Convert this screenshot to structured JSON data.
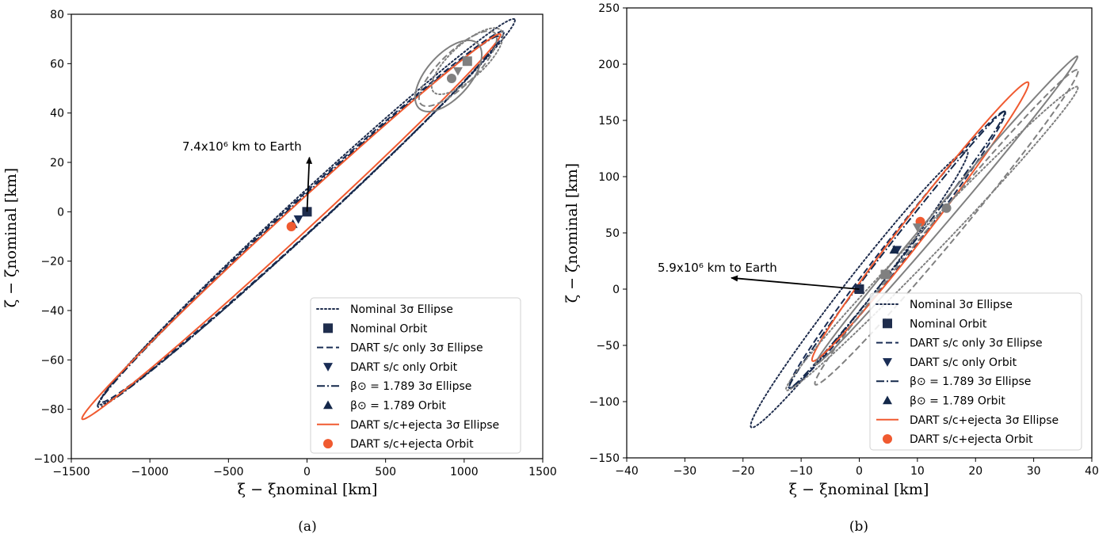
{
  "colors": {
    "nominal": "#1f2d4d",
    "dart": "#1a2d55",
    "beta": "#14284a",
    "ejecta": "#f05a30",
    "gray": "#808080"
  },
  "legend": [
    {
      "label": "Nominal 3σ Ellipse",
      "kind": "line",
      "style": "dotted",
      "color": "nominal"
    },
    {
      "label": "Nominal Orbit",
      "kind": "marker",
      "marker": "square",
      "color": "nominal"
    },
    {
      "label": "DART s/c only 3σ Ellipse",
      "kind": "line",
      "style": "dashed",
      "color": "dart"
    },
    {
      "label": "DART s/c only Orbit",
      "kind": "marker",
      "marker": "tri-down",
      "color": "dart"
    },
    {
      "label": "β⊙ = 1.789 3σ Ellipse",
      "kind": "line",
      "style": "dashdot",
      "color": "beta"
    },
    {
      "label": "β⊙ = 1.789 Orbit",
      "kind": "marker",
      "marker": "tri-up",
      "color": "beta"
    },
    {
      "label": "DART s/c+ejecta 3σ Ellipse",
      "kind": "line",
      "style": "solid",
      "color": "ejecta"
    },
    {
      "label": "DART s/c+ejecta Orbit",
      "kind": "marker",
      "marker": "circle",
      "color": "ejecta"
    }
  ],
  "chart_data": [
    {
      "type": "scatter",
      "caption": "(a)",
      "xlabel": "ξ − ξnominal [km]",
      "ylabel": "ζ − ζnominal [km]",
      "xlim": [
        -1500,
        1500
      ],
      "ylim": [
        -100,
        80
      ],
      "xticks": [
        -1500,
        -1000,
        -500,
        0,
        500,
        1000,
        1500
      ],
      "yticks": [
        -100,
        -80,
        -60,
        -40,
        -20,
        0,
        20,
        40,
        60,
        80
      ],
      "grid": false,
      "legend_position": "lower-right",
      "annotation": {
        "text": "7.4x10⁶ km to Earth",
        "arrow_from": [
          0,
          0
        ],
        "arrow_to": [
          15,
          22
        ]
      },
      "series": [
        {
          "name": "Nominal 3σ Ellipse",
          "cx": 0,
          "cy": 0,
          "a_dir": [
            1320,
            78
          ],
          "b_dir": [
            -90,
            4
          ],
          "style": "dotted",
          "color": "nominal"
        },
        {
          "name": "DART s/c only 3σ Ellipse",
          "cx": -30,
          "cy": -2,
          "a_dir": [
            1280,
            75
          ],
          "b_dir": [
            -80,
            4
          ],
          "style": "dashed",
          "color": "dart"
        },
        {
          "name": "β⊙ = 1.789 3σ Ellipse",
          "cx": -55,
          "cy": -4,
          "a_dir": [
            1275,
            75
          ],
          "b_dir": [
            -75,
            4
          ],
          "style": "dashdot",
          "color": "beta"
        },
        {
          "name": "DART s/c+ejecta 3σ Ellipse",
          "cx": -100,
          "cy": -6,
          "a_dir": [
            1330,
            78
          ],
          "b_dir": [
            -70,
            3
          ],
          "style": "solid",
          "color": "ejecta"
        },
        {
          "name": "",
          "cx": 1020,
          "cy": 61,
          "a_dir": [
            220,
            12
          ],
          "b_dir": [
            -55,
            6
          ],
          "style": "dotted",
          "color": "gray"
        },
        {
          "name": "",
          "cx": 960,
          "cy": 58,
          "a_dir": [
            240,
            14
          ],
          "b_dir": [
            -60,
            6
          ],
          "style": "dashed",
          "color": "gray"
        },
        {
          "name": "",
          "cx": 900,
          "cy": 55,
          "a_dir": [
            200,
            12
          ],
          "b_dir": [
            -70,
            8
          ],
          "style": "solid",
          "color": "gray"
        },
        {
          "name": "Nominal Orbit",
          "x": [
            0
          ],
          "y": [
            0
          ],
          "marker": "square",
          "color": "nominal"
        },
        {
          "name": "DART s/c only Orbit",
          "x": [
            -55
          ],
          "y": [
            -3
          ],
          "marker": "tri-down",
          "color": "dart"
        },
        {
          "name": "β⊙ = 1.789 Orbit",
          "x": [
            -90
          ],
          "y": [
            -5
          ],
          "marker": "tri-up",
          "color": "beta"
        },
        {
          "name": "DART s/c+ejecta Orbit",
          "x": [
            -100
          ],
          "y": [
            -6
          ],
          "marker": "circle",
          "color": "ejecta"
        },
        {
          "name": "",
          "x": [
            1020
          ],
          "y": [
            61
          ],
          "marker": "square",
          "color": "gray"
        },
        {
          "name": "",
          "x": [
            960
          ],
          "y": [
            57
          ],
          "marker": "tri-down",
          "color": "gray"
        },
        {
          "name": "",
          "x": [
            920
          ],
          "y": [
            54
          ],
          "marker": "circle",
          "color": "gray"
        }
      ]
    },
    {
      "type": "scatter",
      "caption": "(b)",
      "xlabel": "ξ − ξnominal [km]",
      "ylabel": "ζ − ζnominal [km]",
      "xlim": [
        -40,
        40
      ],
      "ylim": [
        -150,
        250
      ],
      "xticks": [
        -40,
        -30,
        -20,
        -10,
        0,
        10,
        20,
        30,
        40
      ],
      "yticks": [
        -150,
        -100,
        -50,
        0,
        50,
        100,
        150,
        200,
        250
      ],
      "grid": false,
      "legend_position": "lower-right",
      "annotation": {
        "text": "5.9x10⁶ km to Earth",
        "arrow_from": [
          0,
          0
        ],
        "arrow_to": [
          -22,
          10
        ]
      },
      "series": [
        {
          "name": "Nominal 3σ Ellipse",
          "cx": 0,
          "cy": 0,
          "a_dir": [
            18.5,
            123
          ],
          "b_dir": [
            -2.6,
            3
          ],
          "style": "dotted",
          "color": "nominal"
        },
        {
          "name": "DART s/c only 3σ Ellipse",
          "cx": 6.5,
          "cy": 35,
          "a_dir": [
            18.5,
            123
          ],
          "b_dir": [
            -2.2,
            3
          ],
          "style": "dashed",
          "color": "dart"
        },
        {
          "name": "β⊙ = 1.789 3σ Ellipse",
          "cx": 6.5,
          "cy": 35,
          "a_dir": [
            18.5,
            123
          ],
          "b_dir": [
            -1.6,
            2
          ],
          "style": "dashdot",
          "color": "beta"
        },
        {
          "name": "DART s/c+ejecta 3σ Ellipse",
          "cx": 10.5,
          "cy": 60,
          "a_dir": [
            18.5,
            124
          ],
          "b_dir": [
            -2.2,
            3
          ],
          "style": "solid",
          "color": "ejecta"
        },
        {
          "name": "",
          "cx": 12.5,
          "cy": 45,
          "a_dir": [
            25,
            135
          ],
          "b_dir": [
            -2.4,
            3
          ],
          "style": "dotted",
          "color": "gray"
        },
        {
          "name": "",
          "cx": 15,
          "cy": 55,
          "a_dir": [
            22.5,
            140
          ],
          "b_dir": [
            -2.5,
            3
          ],
          "style": "dashed",
          "color": "gray"
        },
        {
          "name": "",
          "cx": 15,
          "cy": 70,
          "a_dir": [
            22.5,
            137
          ],
          "b_dir": [
            -1.5,
            2
          ],
          "style": "solid",
          "color": "gray"
        },
        {
          "name": "Nominal Orbit",
          "x": [
            0
          ],
          "y": [
            0
          ],
          "marker": "square",
          "color": "nominal"
        },
        {
          "name": "DART s/c only Orbit",
          "x": [
            6.5
          ],
          "y": [
            35
          ],
          "marker": "tri-down",
          "color": "dart"
        },
        {
          "name": "β⊙ = 1.789 Orbit",
          "x": [
            6
          ],
          "y": [
            35
          ],
          "marker": "tri-up",
          "color": "beta"
        },
        {
          "name": "DART s/c+ejecta Orbit",
          "x": [
            10.5
          ],
          "y": [
            60
          ],
          "marker": "circle",
          "color": "ejecta"
        },
        {
          "name": "",
          "x": [
            4.5
          ],
          "y": [
            13
          ],
          "marker": "square",
          "color": "gray"
        },
        {
          "name": "",
          "x": [
            10
          ],
          "y": [
            55
          ],
          "marker": "tri-down",
          "color": "gray"
        },
        {
          "name": "",
          "x": [
            15
          ],
          "y": [
            72
          ],
          "marker": "circle",
          "color": "gray"
        }
      ]
    }
  ]
}
